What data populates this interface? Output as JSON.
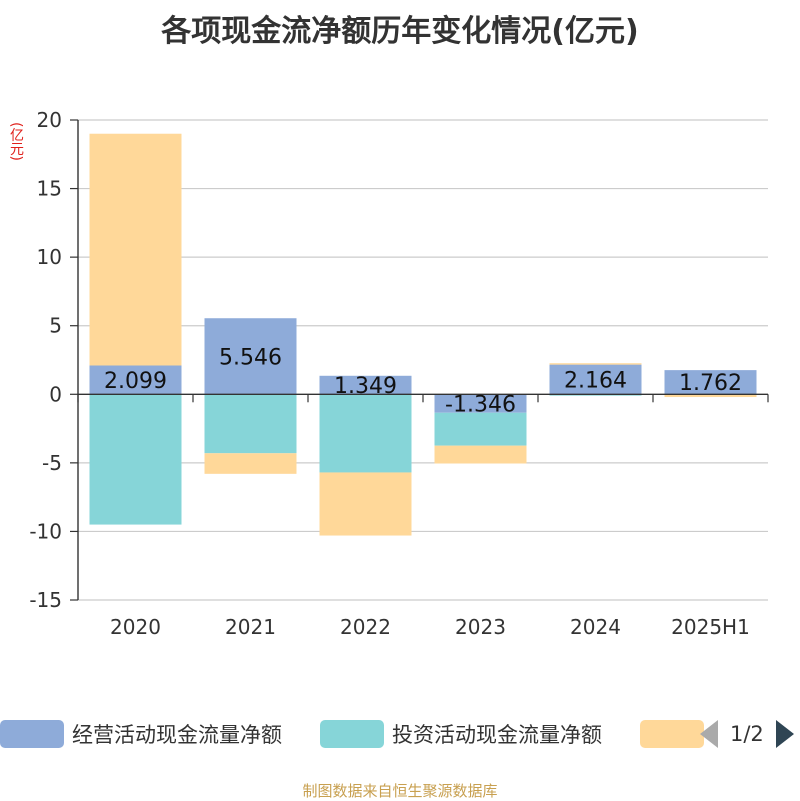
{
  "chart_data": {
    "type": "bar",
    "stacked": true,
    "title": "各项现金流净额历年变化情况(亿元)",
    "ylabel": "(亿元)",
    "categories": [
      "2020",
      "2021",
      "2022",
      "2023",
      "2024",
      "2025H1"
    ],
    "ylim": [
      -15,
      20
    ],
    "yticks": [
      "20",
      "15",
      "10",
      "5",
      "0",
      "-5",
      "-10",
      "-15"
    ],
    "ytick_values": [
      20,
      15,
      10,
      5,
      0,
      -5,
      -10,
      -15
    ],
    "grid": true,
    "series": [
      {
        "name": "经营活动现金流量净额",
        "color": "#8eabd9",
        "values": [
          2.099,
          5.546,
          1.349,
          -1.346,
          2.164,
          1.762
        ],
        "labels": [
          "2.099",
          "5.546",
          "1.349",
          "-1.346",
          "2.164",
          "1.762"
        ]
      },
      {
        "name": "投资活动现金流量净额",
        "color": "#86d5d8",
        "values": [
          -9.5,
          -4.3,
          -5.7,
          -2.4,
          -0.1,
          -0.05
        ]
      },
      {
        "name": "",
        "color": "#ffd899",
        "values": [
          16.9,
          -1.5,
          -4.6,
          -1.3,
          0.1,
          -0.15
        ]
      }
    ],
    "legend_position": "bottom"
  },
  "legend": {
    "page": "1/2"
  },
  "source": "制图数据来自恒生聚源数据库"
}
